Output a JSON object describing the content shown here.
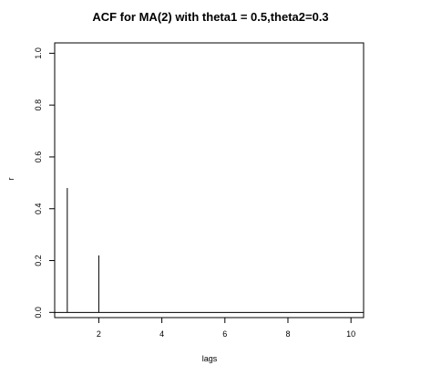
{
  "chart_data": {
    "type": "bar",
    "title": "ACF for MA(2) with theta1 = 0.5,theta2=0.3",
    "xlabel": "lags",
    "ylabel": "r",
    "x": [
      1,
      2,
      3,
      4,
      5,
      6,
      7,
      8,
      9,
      10
    ],
    "values": [
      0.48,
      0.22,
      0,
      0,
      0,
      0,
      0,
      0,
      0,
      0
    ],
    "xlim": [
      0.6,
      10.4
    ],
    "ylim": [
      -0.02,
      1.04
    ],
    "xticks": [
      "2",
      "4",
      "6",
      "8",
      "10"
    ],
    "yticks": [
      "0.0",
      "0.2",
      "0.4",
      "0.6",
      "0.8",
      "1.0"
    ],
    "zero_line": 0,
    "grid": false,
    "legend": "none",
    "colors": {
      "line": "#000000",
      "background": "#ffffff"
    }
  }
}
